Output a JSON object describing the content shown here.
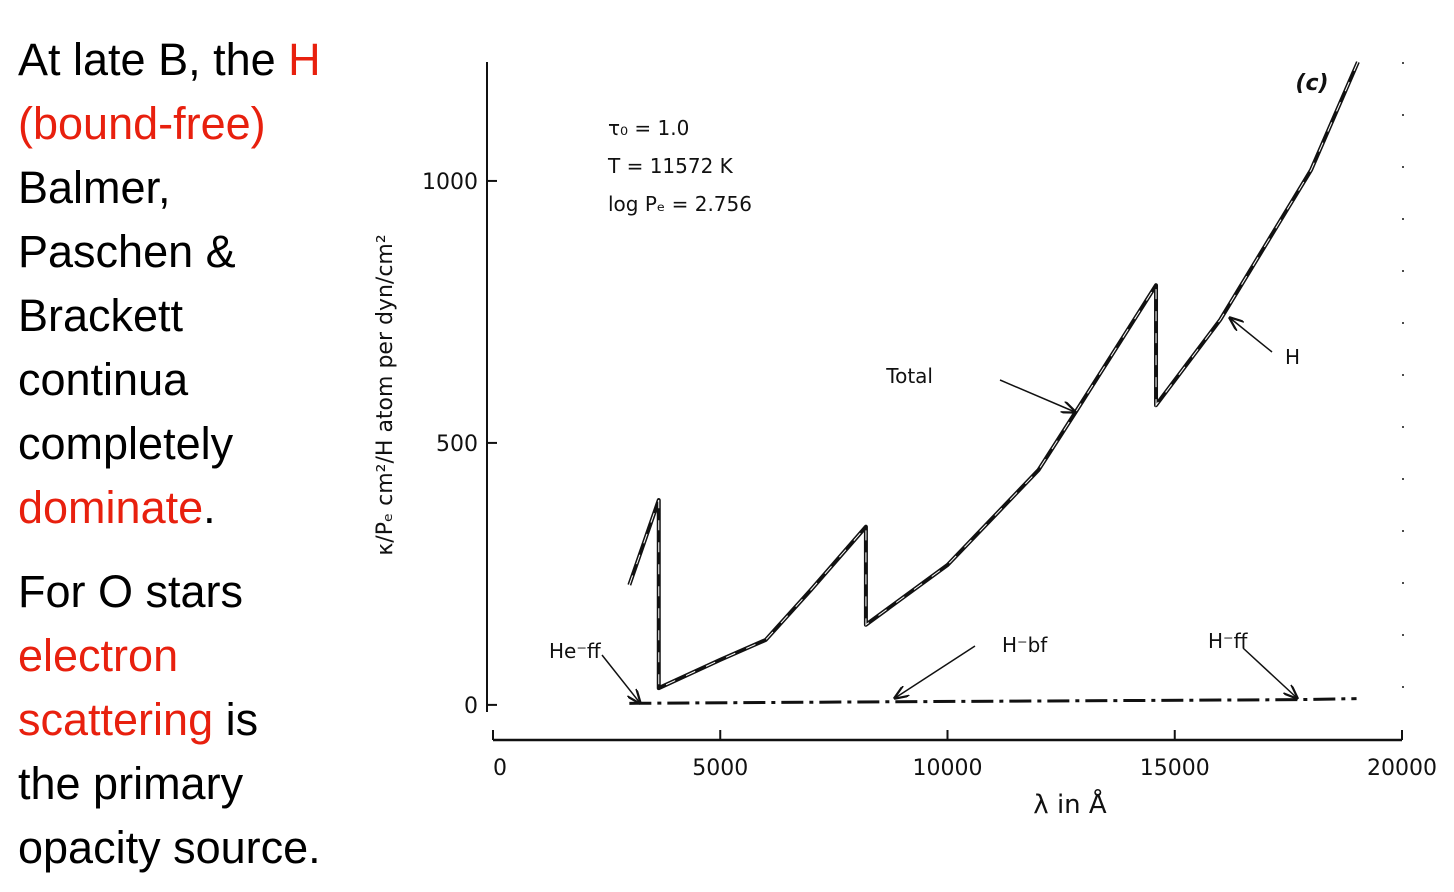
{
  "slide": {
    "paragraphs": [
      [
        [
          {
            "text": "At late B, the ",
            "color": "#000000"
          },
          {
            "text": "H",
            "color": "#e8200e"
          }
        ],
        [
          {
            "text": "(bound-free)",
            "color": "#e8200e"
          }
        ],
        [
          {
            "text": "Balmer,",
            "color": "#000000"
          }
        ],
        [
          {
            "text": "Paschen &",
            "color": "#000000"
          }
        ],
        [
          {
            "text": "Brackett",
            "color": "#000000"
          }
        ],
        [
          {
            "text": "continua",
            "color": "#000000"
          }
        ],
        [
          {
            "text": "completely",
            "color": "#000000"
          }
        ],
        [
          {
            "text": "dominate",
            "color": "#e8200e"
          },
          {
            "text": ".",
            "color": "#000000"
          }
        ]
      ],
      [
        [
          {
            "text": "For O stars",
            "color": "#000000"
          }
        ],
        [
          {
            "text": "electron",
            "color": "#e8200e"
          }
        ],
        [
          {
            "text": "scattering",
            "color": "#e8200e"
          },
          {
            "text": " is",
            "color": "#000000"
          }
        ],
        [
          {
            "text": "the primary",
            "color": "#000000"
          }
        ],
        [
          {
            "text": "opacity source.",
            "color": "#000000"
          }
        ]
      ]
    ]
  },
  "chart_data": {
    "type": "line",
    "panel_label": "(c)",
    "parameters": [
      "τ₀ = 1.0",
      "T = 11572 K",
      "log Pₑ = 2.756"
    ],
    "xlabel": "λ in Å",
    "ylabel": "κ/Pₑ cm²/H atom per dyn/cm²",
    "xlim": [
      0,
      20000
    ],
    "ylim": [
      -67,
      1227
    ],
    "xticks": [
      0,
      5000,
      10000,
      15000,
      20000
    ],
    "yticks": [
      0,
      500,
      1000
    ],
    "series": [
      {
        "name": "Total",
        "color": "#111111",
        "style": "solid",
        "x": [
          3000,
          3647,
          3647,
          5000,
          6000,
          7000,
          8205,
          8205,
          10000,
          12000,
          12820,
          14588,
          14588,
          16000,
          17000,
          18000,
          19030
        ],
        "values": [
          229,
          391,
          32,
          86,
          124,
          220,
          340,
          153,
          267,
          448,
          559,
          801,
          572,
          735,
          878,
          1021,
          1227
        ]
      },
      {
        "name": "H⁻bf",
        "color": "#111111",
        "style": "dashdot",
        "x": [
          3000,
          8800,
          17700,
          19000
        ],
        "values": [
          3,
          6,
          10,
          12
        ]
      }
    ],
    "annotations": [
      "Total",
      "H",
      "He⁻ff",
      "H⁻bf",
      "H⁻ff"
    ]
  }
}
